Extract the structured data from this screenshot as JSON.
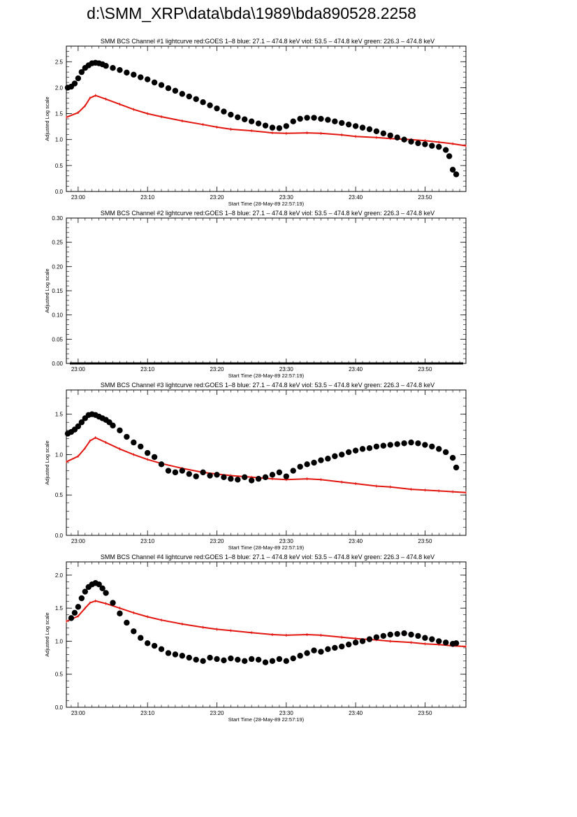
{
  "page_title": "d:\\SMM_XRP\\data\\bda\\1989\\bda890528.2258",
  "colors": {
    "goes": "#e3160f",
    "bcs": "#000000"
  },
  "chart_data": [
    {
      "type": "scatter",
      "title": "SMM BCS Channel #1 lightcurve  red:GOES 1–8  blue: 27.1 – 474.8 keV  viol: 53.5 – 474.8 keV  green: 226.3 – 474.8 keV",
      "xlabel": "Start Time (28-May-89 22:57:19)",
      "ylabel": "Adjusted Log scale",
      "xlim": [
        -1.7,
        55.9
      ],
      "ylim": [
        0,
        2.8
      ],
      "x_ticks": [
        {
          "v": 0,
          "label": "23:00"
        },
        {
          "v": 10,
          "label": "23:10"
        },
        {
          "v": 20,
          "label": "23:20"
        },
        {
          "v": 30,
          "label": "23:30"
        },
        {
          "v": 40,
          "label": "23:40"
        },
        {
          "v": 50,
          "label": "23:50"
        }
      ],
      "y_ticks": [
        {
          "v": 0,
          "label": "0.0"
        },
        {
          "v": 0.5,
          "label": "0.5"
        },
        {
          "v": 1.0,
          "label": "1.0"
        },
        {
          "v": 1.5,
          "label": "1.5"
        },
        {
          "v": 2.0,
          "label": "2.0"
        },
        {
          "v": 2.5,
          "label": "2.5"
        }
      ],
      "series": [
        {
          "name": "GOES 1–8",
          "style": "line",
          "color": "#e3160f",
          "x": [
            -1.7,
            0,
            1,
            1.7,
            2.5,
            4,
            6,
            8,
            10,
            12,
            15,
            18,
            20,
            22,
            25,
            28,
            30,
            33,
            35,
            38,
            40,
            43,
            45,
            48,
            50,
            52,
            54,
            55.9
          ],
          "y": [
            1.43,
            1.52,
            1.65,
            1.8,
            1.85,
            1.78,
            1.68,
            1.58,
            1.5,
            1.44,
            1.36,
            1.29,
            1.24,
            1.2,
            1.17,
            1.13,
            1.12,
            1.13,
            1.12,
            1.09,
            1.06,
            1.04,
            1.02,
            1.0,
            0.98,
            0.95,
            0.92,
            0.88
          ]
        },
        {
          "name": "BCS channel #1",
          "style": "points",
          "color": "#000000",
          "x": [
            -1.5,
            -1,
            -0.5,
            0,
            0.5,
            1,
            1.5,
            2,
            2.5,
            3,
            3.5,
            4,
            5,
            6,
            7,
            8,
            9,
            10,
            11,
            12,
            13,
            14,
            15,
            16,
            17,
            18,
            19,
            20,
            21,
            22,
            23,
            24,
            25,
            26,
            27,
            28,
            29,
            30,
            31,
            32,
            33,
            34,
            35,
            36,
            37,
            38,
            39,
            40,
            41,
            42,
            43,
            44,
            45,
            46,
            47,
            48,
            49,
            50,
            51,
            52,
            53,
            53.5,
            54,
            54.5
          ],
          "y": [
            2.0,
            2.02,
            2.08,
            2.18,
            2.3,
            2.38,
            2.43,
            2.47,
            2.48,
            2.47,
            2.45,
            2.42,
            2.38,
            2.34,
            2.29,
            2.25,
            2.2,
            2.16,
            2.1,
            2.05,
            1.99,
            1.94,
            1.88,
            1.83,
            1.78,
            1.72,
            1.66,
            1.6,
            1.54,
            1.48,
            1.43,
            1.39,
            1.35,
            1.31,
            1.27,
            1.23,
            1.22,
            1.26,
            1.35,
            1.4,
            1.42,
            1.42,
            1.4,
            1.38,
            1.35,
            1.32,
            1.29,
            1.26,
            1.23,
            1.2,
            1.16,
            1.12,
            1.08,
            1.04,
            1.0,
            0.96,
            0.93,
            0.91,
            0.88,
            0.86,
            0.8,
            0.68,
            0.42,
            0.33
          ]
        }
      ]
    },
    {
      "type": "scatter",
      "title": "SMM BCS Channel #2 lightcurve  red:GOES 1–8  blue: 27.1 – 474.8 keV  viol: 53.5 – 474.8 keV  green: 226.3 – 474.8 keV",
      "xlabel": "Start Time (28-May-89 22:57:19)",
      "ylabel": "Adjusted Log scale",
      "xlim": [
        -1.7,
        55.9
      ],
      "ylim": [
        0,
        0.3
      ],
      "x_ticks": [
        {
          "v": 0,
          "label": "23:00"
        },
        {
          "v": 10,
          "label": "23:10"
        },
        {
          "v": 20,
          "label": "23:20"
        },
        {
          "v": 30,
          "label": "23:30"
        },
        {
          "v": 40,
          "label": "23:40"
        },
        {
          "v": 50,
          "label": "23:50"
        }
      ],
      "y_ticks": [
        {
          "v": 0,
          "label": "0.00"
        },
        {
          "v": 0.05,
          "label": "0.05"
        },
        {
          "v": 0.1,
          "label": "0.10"
        },
        {
          "v": 0.15,
          "label": "0.15"
        },
        {
          "v": 0.2,
          "label": "0.20"
        },
        {
          "v": 0.25,
          "label": "0.25"
        },
        {
          "v": 0.3,
          "label": "0.30"
        }
      ],
      "series": [
        {
          "name": "BCS channel #2",
          "style": "line",
          "color": "#000000",
          "width": 3,
          "x": [
            -1.2,
            55.5
          ],
          "y": [
            0,
            0
          ]
        }
      ]
    },
    {
      "type": "scatter",
      "title": "SMM BCS Channel #3 lightcurve  red:GOES 1–8  blue: 27.1 – 474.8 keV  viol: 53.5 – 474.8 keV  green: 226.3 – 474.8 keV",
      "xlabel": "Start Time (28-May-89 22:57:19)",
      "ylabel": "Adjusted Log scale",
      "xlim": [
        -1.7,
        55.9
      ],
      "ylim": [
        0,
        1.8
      ],
      "x_ticks": [
        {
          "v": 0,
          "label": "23:00"
        },
        {
          "v": 10,
          "label": "23:10"
        },
        {
          "v": 20,
          "label": "23:20"
        },
        {
          "v": 30,
          "label": "23:30"
        },
        {
          "v": 40,
          "label": "23:40"
        },
        {
          "v": 50,
          "label": "23:50"
        }
      ],
      "y_ticks": [
        {
          "v": 0,
          "label": "0.0"
        },
        {
          "v": 0.5,
          "label": "0.5"
        },
        {
          "v": 1.0,
          "label": "1.0"
        },
        {
          "v": 1.5,
          "label": "1.5"
        }
      ],
      "series": [
        {
          "name": "GOES 1–8",
          "style": "line",
          "color": "#e3160f",
          "x": [
            -1.7,
            0,
            1,
            1.7,
            2.5,
            4,
            6,
            8,
            10,
            12,
            15,
            18,
            20,
            22,
            25,
            28,
            30,
            33,
            35,
            38,
            40,
            43,
            45,
            48,
            50,
            52,
            54,
            55.9
          ],
          "y": [
            0.91,
            0.98,
            1.08,
            1.17,
            1.21,
            1.15,
            1.07,
            1.0,
            0.94,
            0.89,
            0.83,
            0.78,
            0.76,
            0.74,
            0.72,
            0.7,
            0.69,
            0.7,
            0.69,
            0.66,
            0.64,
            0.61,
            0.6,
            0.57,
            0.56,
            0.55,
            0.54,
            0.53
          ]
        },
        {
          "name": "BCS channel #3",
          "style": "points",
          "color": "#000000",
          "x": [
            -1.5,
            -1,
            -0.5,
            0,
            0.5,
            1,
            1.5,
            2,
            2.5,
            3,
            3.5,
            4,
            4.5,
            5,
            6,
            7,
            8,
            9,
            10,
            11,
            12,
            13,
            14,
            15,
            16,
            17,
            18,
            19,
            20,
            21,
            22,
            23,
            24,
            25,
            26,
            27,
            28,
            29,
            30,
            31,
            32,
            33,
            34,
            35,
            36,
            37,
            38,
            39,
            40,
            41,
            42,
            43,
            44,
            45,
            46,
            47,
            48,
            49,
            50,
            51,
            52,
            53,
            54,
            54.5
          ],
          "y": [
            1.26,
            1.28,
            1.31,
            1.35,
            1.4,
            1.45,
            1.49,
            1.5,
            1.49,
            1.47,
            1.45,
            1.43,
            1.4,
            1.36,
            1.3,
            1.22,
            1.15,
            1.1,
            1.02,
            0.97,
            0.88,
            0.8,
            0.78,
            0.8,
            0.76,
            0.73,
            0.78,
            0.74,
            0.75,
            0.72,
            0.7,
            0.69,
            0.72,
            0.68,
            0.7,
            0.72,
            0.75,
            0.78,
            0.73,
            0.8,
            0.85,
            0.88,
            0.9,
            0.93,
            0.95,
            0.98,
            1.0,
            1.03,
            1.05,
            1.07,
            1.08,
            1.1,
            1.11,
            1.12,
            1.13,
            1.14,
            1.15,
            1.14,
            1.12,
            1.1,
            1.07,
            1.03,
            0.96,
            0.84
          ]
        }
      ]
    },
    {
      "type": "scatter",
      "title": "SMM BCS Channel #4 lightcurve  red:GOES 1–8  blue: 27.1 – 474.8 keV  viol: 53.5 – 474.8 keV  green: 226.3 – 474.8 keV",
      "xlabel": "Start Time (28-May-89 22:57:19)",
      "ylabel": "Adjusted Log scale",
      "xlim": [
        -1.7,
        55.9
      ],
      "ylim": [
        0,
        2.2
      ],
      "x_ticks": [
        {
          "v": 0,
          "label": "23:00"
        },
        {
          "v": 10,
          "label": "23:10"
        },
        {
          "v": 20,
          "label": "23:20"
        },
        {
          "v": 30,
          "label": "23:30"
        },
        {
          "v": 40,
          "label": "23:40"
        },
        {
          "v": 50,
          "label": "23:50"
        }
      ],
      "y_ticks": [
        {
          "v": 0,
          "label": "0.0"
        },
        {
          "v": 0.5,
          "label": "0.5"
        },
        {
          "v": 1.0,
          "label": "1.0"
        },
        {
          "v": 1.5,
          "label": "1.5"
        },
        {
          "v": 2.0,
          "label": "2.0"
        }
      ],
      "series": [
        {
          "name": "GOES 1–8",
          "style": "line",
          "color": "#e3160f",
          "x": [
            -1.7,
            0,
            1,
            1.7,
            2.5,
            4,
            6,
            8,
            10,
            12,
            15,
            18,
            20,
            22,
            25,
            28,
            30,
            33,
            35,
            38,
            40,
            43,
            45,
            48,
            50,
            52,
            54,
            55.9
          ],
          "y": [
            1.3,
            1.38,
            1.5,
            1.58,
            1.61,
            1.57,
            1.5,
            1.43,
            1.37,
            1.32,
            1.26,
            1.21,
            1.18,
            1.16,
            1.13,
            1.1,
            1.09,
            1.1,
            1.09,
            1.06,
            1.04,
            1.02,
            1.0,
            0.98,
            0.96,
            0.95,
            0.93,
            0.92
          ]
        },
        {
          "name": "BCS channel #4",
          "style": "points",
          "color": "#000000",
          "x": [
            -1,
            -0.5,
            0,
            0.5,
            1,
            1.5,
            2,
            2.5,
            3,
            3.5,
            4,
            5,
            6,
            7,
            8,
            9,
            10,
            11,
            12,
            13,
            14,
            15,
            16,
            17,
            18,
            19,
            20,
            21,
            22,
            23,
            24,
            25,
            26,
            27,
            28,
            29,
            30,
            31,
            32,
            33,
            34,
            35,
            36,
            37,
            38,
            39,
            40,
            41,
            42,
            43,
            44,
            45,
            46,
            47,
            48,
            49,
            50,
            51,
            52,
            53,
            54,
            54.5
          ],
          "y": [
            1.35,
            1.43,
            1.52,
            1.65,
            1.75,
            1.82,
            1.86,
            1.88,
            1.86,
            1.8,
            1.73,
            1.58,
            1.42,
            1.28,
            1.15,
            1.05,
            0.97,
            0.93,
            0.88,
            0.82,
            0.8,
            0.78,
            0.75,
            0.72,
            0.7,
            0.75,
            0.73,
            0.71,
            0.74,
            0.72,
            0.7,
            0.73,
            0.72,
            0.68,
            0.7,
            0.73,
            0.7,
            0.74,
            0.78,
            0.82,
            0.86,
            0.84,
            0.88,
            0.9,
            0.92,
            0.95,
            0.98,
            1.0,
            1.03,
            1.06,
            1.08,
            1.1,
            1.11,
            1.12,
            1.1,
            1.08,
            1.05,
            1.03,
            1.0,
            0.98,
            0.96,
            0.97
          ]
        }
      ]
    }
  ]
}
